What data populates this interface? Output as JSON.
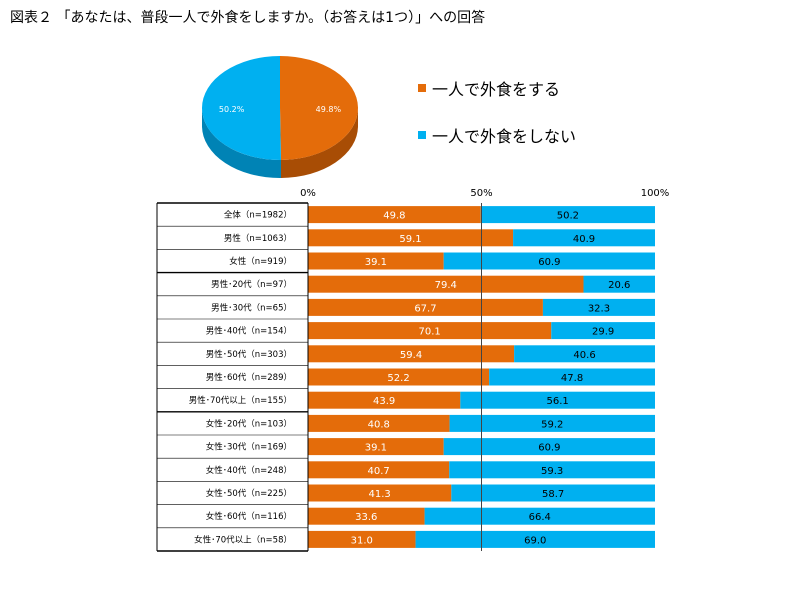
{
  "title": "図表２ 「あなたは、普段一人で外食をしますか。（お答えは1つ）」への回答",
  "colors": {
    "orange": "#e46c0a",
    "blue": "#00b0f0",
    "orange_dark": "#a84d05",
    "blue_dark": "#0083b5"
  },
  "legend": [
    {
      "label": "一人で外食をする",
      "color": "#e46c0a"
    },
    {
      "label": "一人で外食をしない",
      "color": "#00b0f0"
    }
  ],
  "chart_data": [
    {
      "type": "pie",
      "labels": [
        "一人で外食をする",
        "一人で外食をしない"
      ],
      "values": [
        49.8,
        50.2
      ],
      "value_labels": [
        "49.8%",
        "50.2%"
      ],
      "colors": [
        "#e46c0a",
        "#00b0f0"
      ]
    },
    {
      "type": "bar",
      "orientation": "horizontal",
      "stacked": true,
      "percent": true,
      "xlim": [
        0,
        100
      ],
      "x_ticks": [
        "0%",
        "50%",
        "100%"
      ],
      "categories": [
        "全体（n=1982）",
        "男性（n=1063）",
        "女性（n=919）",
        "男性･20代（n=97）",
        "男性･30代（n=65）",
        "男性･40代（n=154）",
        "男性･50代（n=303）",
        "男性･60代（n=289）",
        "男性･70代以上（n=155）",
        "女性･20代（n=103）",
        "女性･30代（n=169）",
        "女性･40代（n=248）",
        "女性･50代（n=225）",
        "女性･60代（n=116）",
        "女性･70代以上（n=58）"
      ],
      "series": [
        {
          "name": "一人で外食をする",
          "color": "#e46c0a",
          "values": [
            49.8,
            59.1,
            39.1,
            79.4,
            67.7,
            70.1,
            59.4,
            52.2,
            43.9,
            40.8,
            39.1,
            40.7,
            41.3,
            33.6,
            31.0
          ],
          "labels": [
            "49.8",
            "59.1",
            "39.1",
            "79.4",
            "67.7",
            "70.1",
            "59.4",
            "52.2",
            "43.9",
            "40.8",
            "39.1",
            "40.7",
            "41.3",
            "33.6",
            "31.0"
          ]
        },
        {
          "name": "一人で外食をしない",
          "color": "#00b0f0",
          "values": [
            50.2,
            40.9,
            60.9,
            20.6,
            32.3,
            29.9,
            40.6,
            47.8,
            56.1,
            59.2,
            60.9,
            59.3,
            58.7,
            66.4,
            69.0
          ],
          "labels": [
            "50.2",
            "40.9",
            "60.9",
            "20.6",
            "32.3",
            "29.9",
            "40.6",
            "47.8",
            "56.1",
            "59.2",
            "60.9",
            "59.3",
            "58.7",
            "66.4",
            "69.0"
          ]
        }
      ],
      "groups": [
        [
          0,
          2
        ],
        [
          3,
          8
        ],
        [
          9,
          14
        ]
      ]
    }
  ]
}
